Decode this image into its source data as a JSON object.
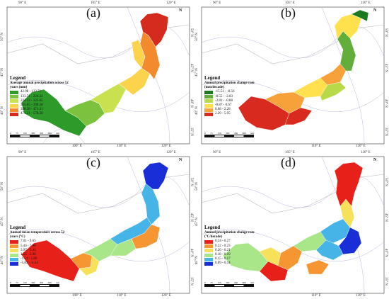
{
  "panels": [
    {
      "label": "(a)",
      "top_ticks": [
        "90° E",
        "105° E",
        "120° E"
      ],
      "bottom_ticks": [
        "100° E",
        "110° E",
        "120° E"
      ],
      "left_ticks": [
        "50° N",
        "45° N",
        "40° N"
      ],
      "right_ticks": [
        "50° N",
        "45° N",
        "40° N",
        "35° N"
      ],
      "north": "N",
      "legend_title": "Legend",
      "legend_subtitle": "Average annual precipitation across 52 years (mm)",
      "legend_items": [
        {
          "label": "42.98 - 133.71",
          "color": "#2e9a2a"
        },
        {
          "label": "133.71 - 224.22",
          "color": "#7cc23e"
        },
        {
          "label": "224.22 - 325.05",
          "color": "#c9e04f"
        },
        {
          "label": "325.05 - 398.58",
          "color": "#fbd34c"
        },
        {
          "label": "398.58 - 471.21",
          "color": "#f48a2e"
        },
        {
          "label": "471.21 - 578.26",
          "color": "#d52a1e"
        }
      ],
      "scale": [
        "0",
        "75",
        "150",
        "300",
        "450",
        "600"
      ],
      "scale_unit": "km"
    },
    {
      "label": "(b)",
      "top_ticks": [
        "90° E",
        "105° E",
        "120° E"
      ],
      "bottom_ticks": [
        "110° E",
        "120° E"
      ],
      "left_ticks": [
        "50° N",
        "45° N",
        "40° N"
      ],
      "right_ticks": [
        "50° N",
        "45° N",
        "40° N",
        "35° N"
      ],
      "north": "N",
      "legend_title": "Legend",
      "legend_subtitle": "Annual precipitation change rate (mm/decade)",
      "legend_items": [
        {
          "label": "-15.51 - -8.56",
          "color": "#1a7a1f"
        },
        {
          "label": "-8.55 - -2.83",
          "color": "#63ad3b"
        },
        {
          "label": "-2.81 - -0.88",
          "color": "#b8d94a"
        },
        {
          "label": "-0.87 - 0.67",
          "color": "#ffe04d"
        },
        {
          "label": "0.68 - 2.28",
          "color": "#f6a13a"
        },
        {
          "label": "2.29 - 5.95",
          "color": "#d82a1e"
        }
      ],
      "scale": [
        "0",
        "75",
        "150",
        "300",
        "450",
        "600"
      ],
      "scale_unit": "km"
    },
    {
      "label": "(c)",
      "top_ticks": [
        "90° E",
        "105° E",
        "120° E"
      ],
      "bottom_ticks": [
        "100° E",
        "110° E",
        "120° E"
      ],
      "left_ticks": [
        "50° N",
        "45° N",
        "40° N"
      ],
      "right_ticks": [
        "50° N",
        "45° N",
        "40° N",
        "35° N"
      ],
      "north": "N",
      "legend_title": "Legend",
      "legend_subtitle": "Annual mean temperature across 52 years (°C)",
      "legend_items": [
        {
          "label": "7.01 - 9.65",
          "color": "#e8201a"
        },
        {
          "label": "5.44 - 7.00",
          "color": "#f59632"
        },
        {
          "label": "3.97 - 5.43",
          "color": "#f7e05a"
        },
        {
          "label": "1.55 - 2.96",
          "color": "#a9e68a"
        },
        {
          "label": "-1.51 - 1.89",
          "color": "#47b4e8"
        },
        {
          "label": "-5.83 - -1.51",
          "color": "#1a2ed8"
        }
      ],
      "scale": [
        "0",
        "75",
        "150",
        "300",
        "450",
        "600"
      ],
      "scale_unit": "km"
    },
    {
      "label": "(d)",
      "top_ticks": [
        "90° E",
        "105° E",
        "120° E"
      ],
      "bottom_ticks": [
        "110° E",
        "120° E"
      ],
      "left_ticks": [
        "50° N",
        "45° N",
        "40° N"
      ],
      "right_ticks": [
        "50° N",
        "45° N",
        "40° N",
        "35° N"
      ],
      "north": "N",
      "legend_title": "Legend",
      "legend_subtitle": "Annual precipitation change rate (°C/decade)",
      "legend_items": [
        {
          "label": "0.24 - 0.27",
          "color": "#e8201a"
        },
        {
          "label": "0.22 - 0.23",
          "color": "#f59632"
        },
        {
          "label": "0.20 - 0.21",
          "color": "#f7e05a"
        },
        {
          "label": "0.18 - 0.19",
          "color": "#a9e68a"
        },
        {
          "label": "0.15 - 0.17",
          "color": "#47b4e8"
        },
        {
          "label": "0.09 - 0.14",
          "color": "#1a2ed8"
        }
      ],
      "scale": [
        "0",
        "75",
        "150",
        "300",
        "450",
        "600"
      ],
      "scale_unit": "km"
    }
  ]
}
